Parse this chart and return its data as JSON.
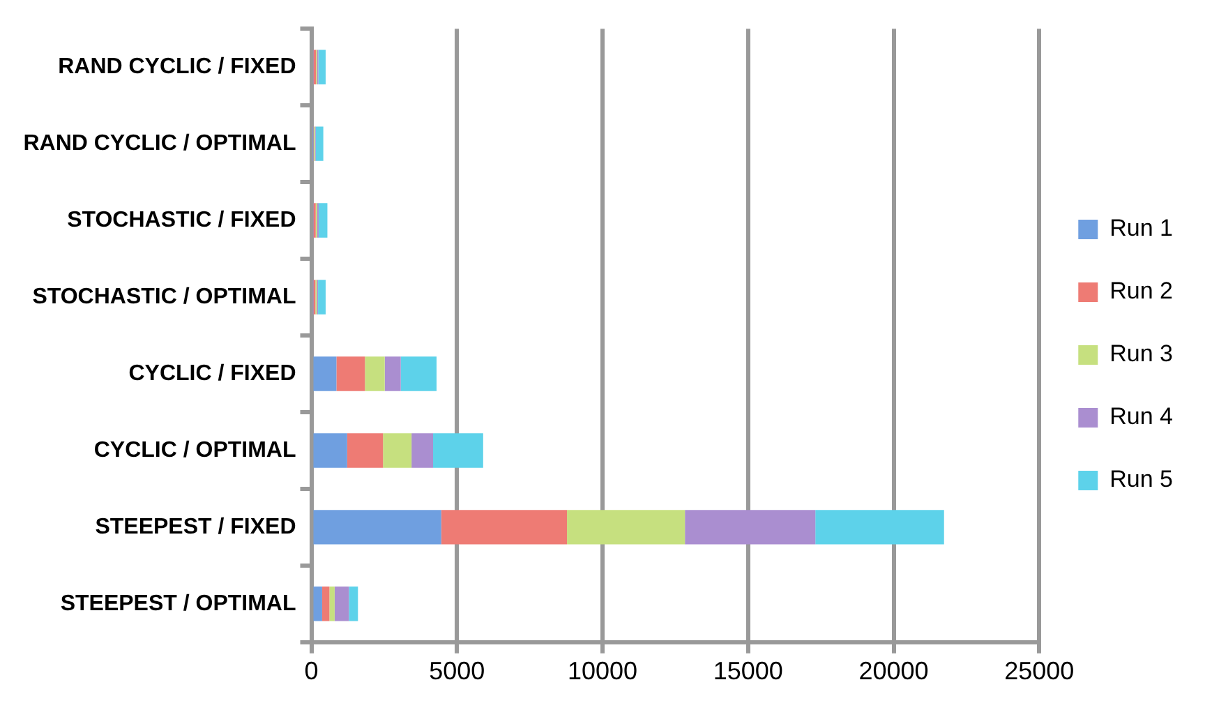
{
  "chart_data": {
    "type": "bar",
    "orientation": "horizontal",
    "stacked": true,
    "legend": "right",
    "grid": "x",
    "categories": [
      "RAND CYCLIC / FIXED",
      "RAND CYCLIC / OPTIMAL",
      "STOCHASTIC / FIXED",
      "STOCHASTIC / OPTIMAL",
      "CYCLIC / FIXED",
      "CYCLIC / OPTIMAL",
      "STEEPEST / FIXED",
      "STEEPEST / OPTIMAL"
    ],
    "xlim": [
      0,
      25000
    ],
    "xticks": [
      0,
      5000,
      10000,
      15000,
      20000,
      25000
    ],
    "series": [
      {
        "name": "Run 1",
        "color": "#6f9fe0",
        "values": [
          60,
          40,
          60,
          50,
          860,
          1230,
          4460,
          370
        ]
      },
      {
        "name": "Run 2",
        "color": "#ee7b74",
        "values": [
          100,
          40,
          90,
          90,
          980,
          1230,
          4320,
          250
        ]
      },
      {
        "name": "Run 3",
        "color": "#c6e07f",
        "values": [
          40,
          40,
          50,
          50,
          680,
          980,
          4050,
          180
        ]
      },
      {
        "name": "Run 4",
        "color": "#aa8ed0",
        "values": [
          40,
          30,
          50,
          40,
          550,
          740,
          4480,
          490
        ]
      },
      {
        "name": "Run 5",
        "color": "#5dd2ea",
        "values": [
          250,
          260,
          300,
          260,
          1230,
          1720,
          4420,
          310
        ]
      }
    ]
  }
}
